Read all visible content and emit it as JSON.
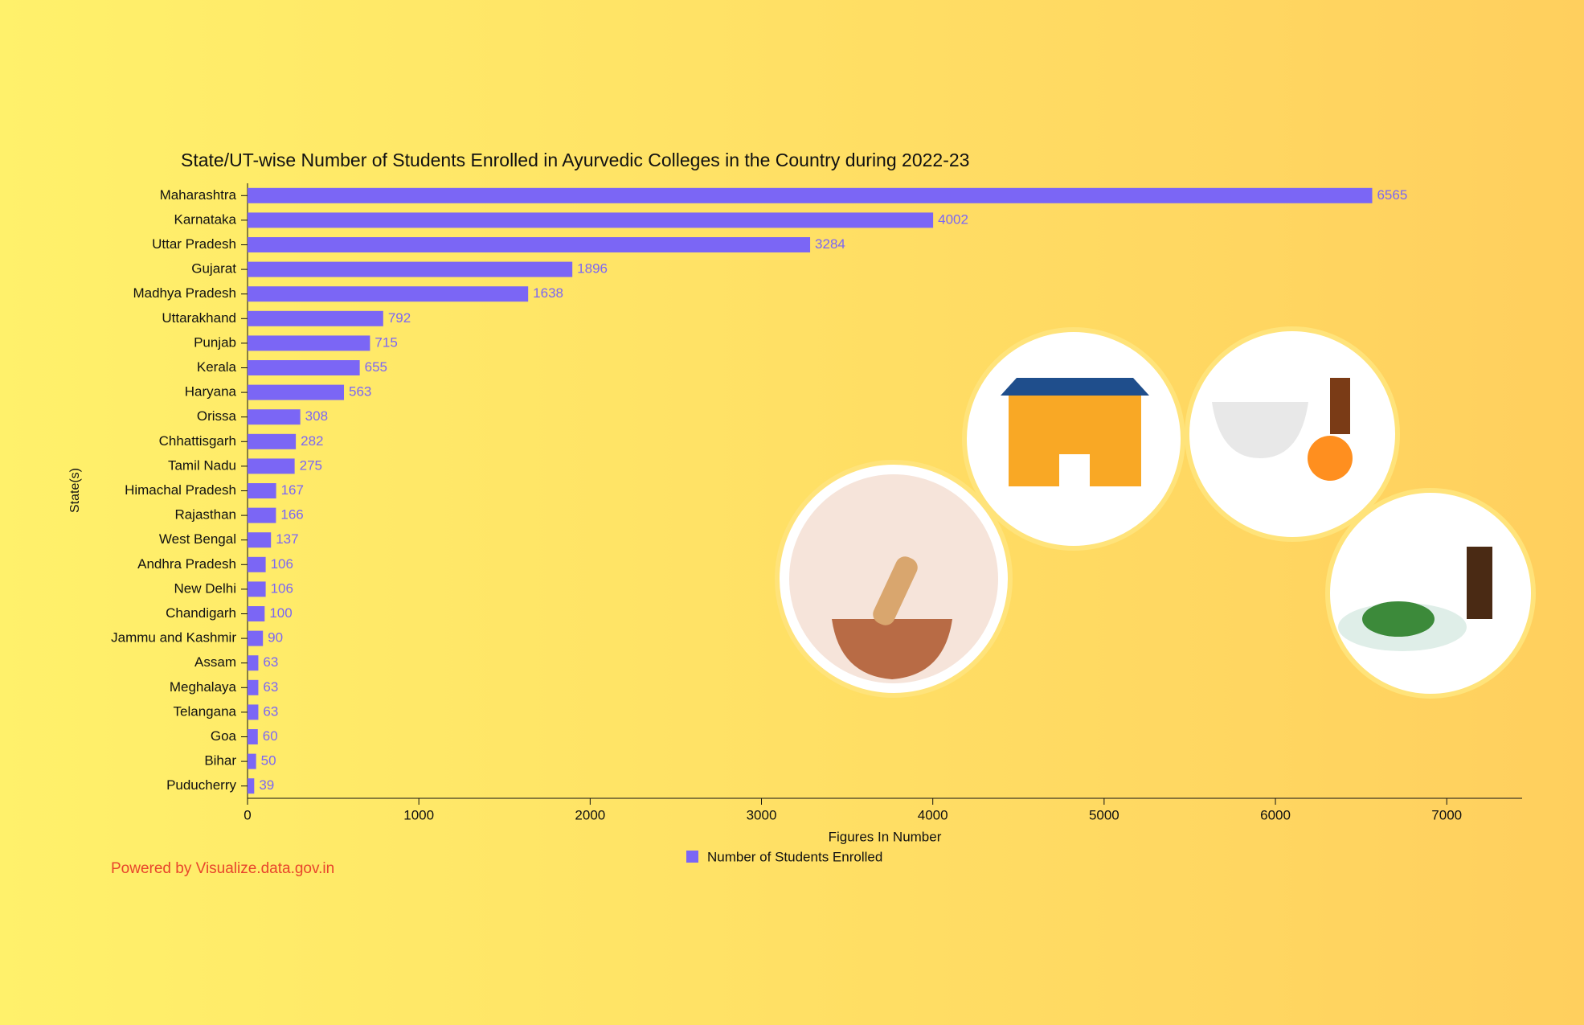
{
  "chart_data": {
    "type": "hbar",
    "title": "State/UT-wise Number of Students Enrolled in Ayurvedic Colleges in the Country during 2022-23",
    "x_label": "Figures In Number",
    "y_label": "State(s)",
    "categories": [
      "Maharashtra",
      "Karnataka",
      "Uttar Pradesh",
      "Gujarat",
      "Madhya Pradesh",
      "Uttarakhand",
      "Punjab",
      "Kerala",
      "Haryana",
      "Orissa",
      "Chhattisgarh",
      "Tamil Nadu",
      "Himachal Pradesh",
      "Rajasthan",
      "West Bengal",
      "Andhra Pradesh",
      "New Delhi",
      "Chandigarh",
      "Jammu and Kashmir",
      "Assam",
      "Meghalaya",
      "Telangana",
      "Goa",
      "Bihar",
      "Puducherry"
    ],
    "series": [
      {
        "name": "Number of Students Enrolled",
        "color": "#7b66f5",
        "values": [
          6565,
          4002,
          3284,
          1896,
          1638,
          792,
          715,
          655,
          563,
          308,
          282,
          275,
          167,
          166,
          137,
          106,
          106,
          100,
          90,
          63,
          63,
          63,
          60,
          50,
          39
        ]
      }
    ],
    "xlim": [
      0,
      7440
    ],
    "xticks": [
      0,
      1000,
      2000,
      3000,
      4000,
      5000,
      6000,
      7000
    ],
    "legend": "bottom",
    "credit": "Powered by Visualize.data.gov.in"
  }
}
